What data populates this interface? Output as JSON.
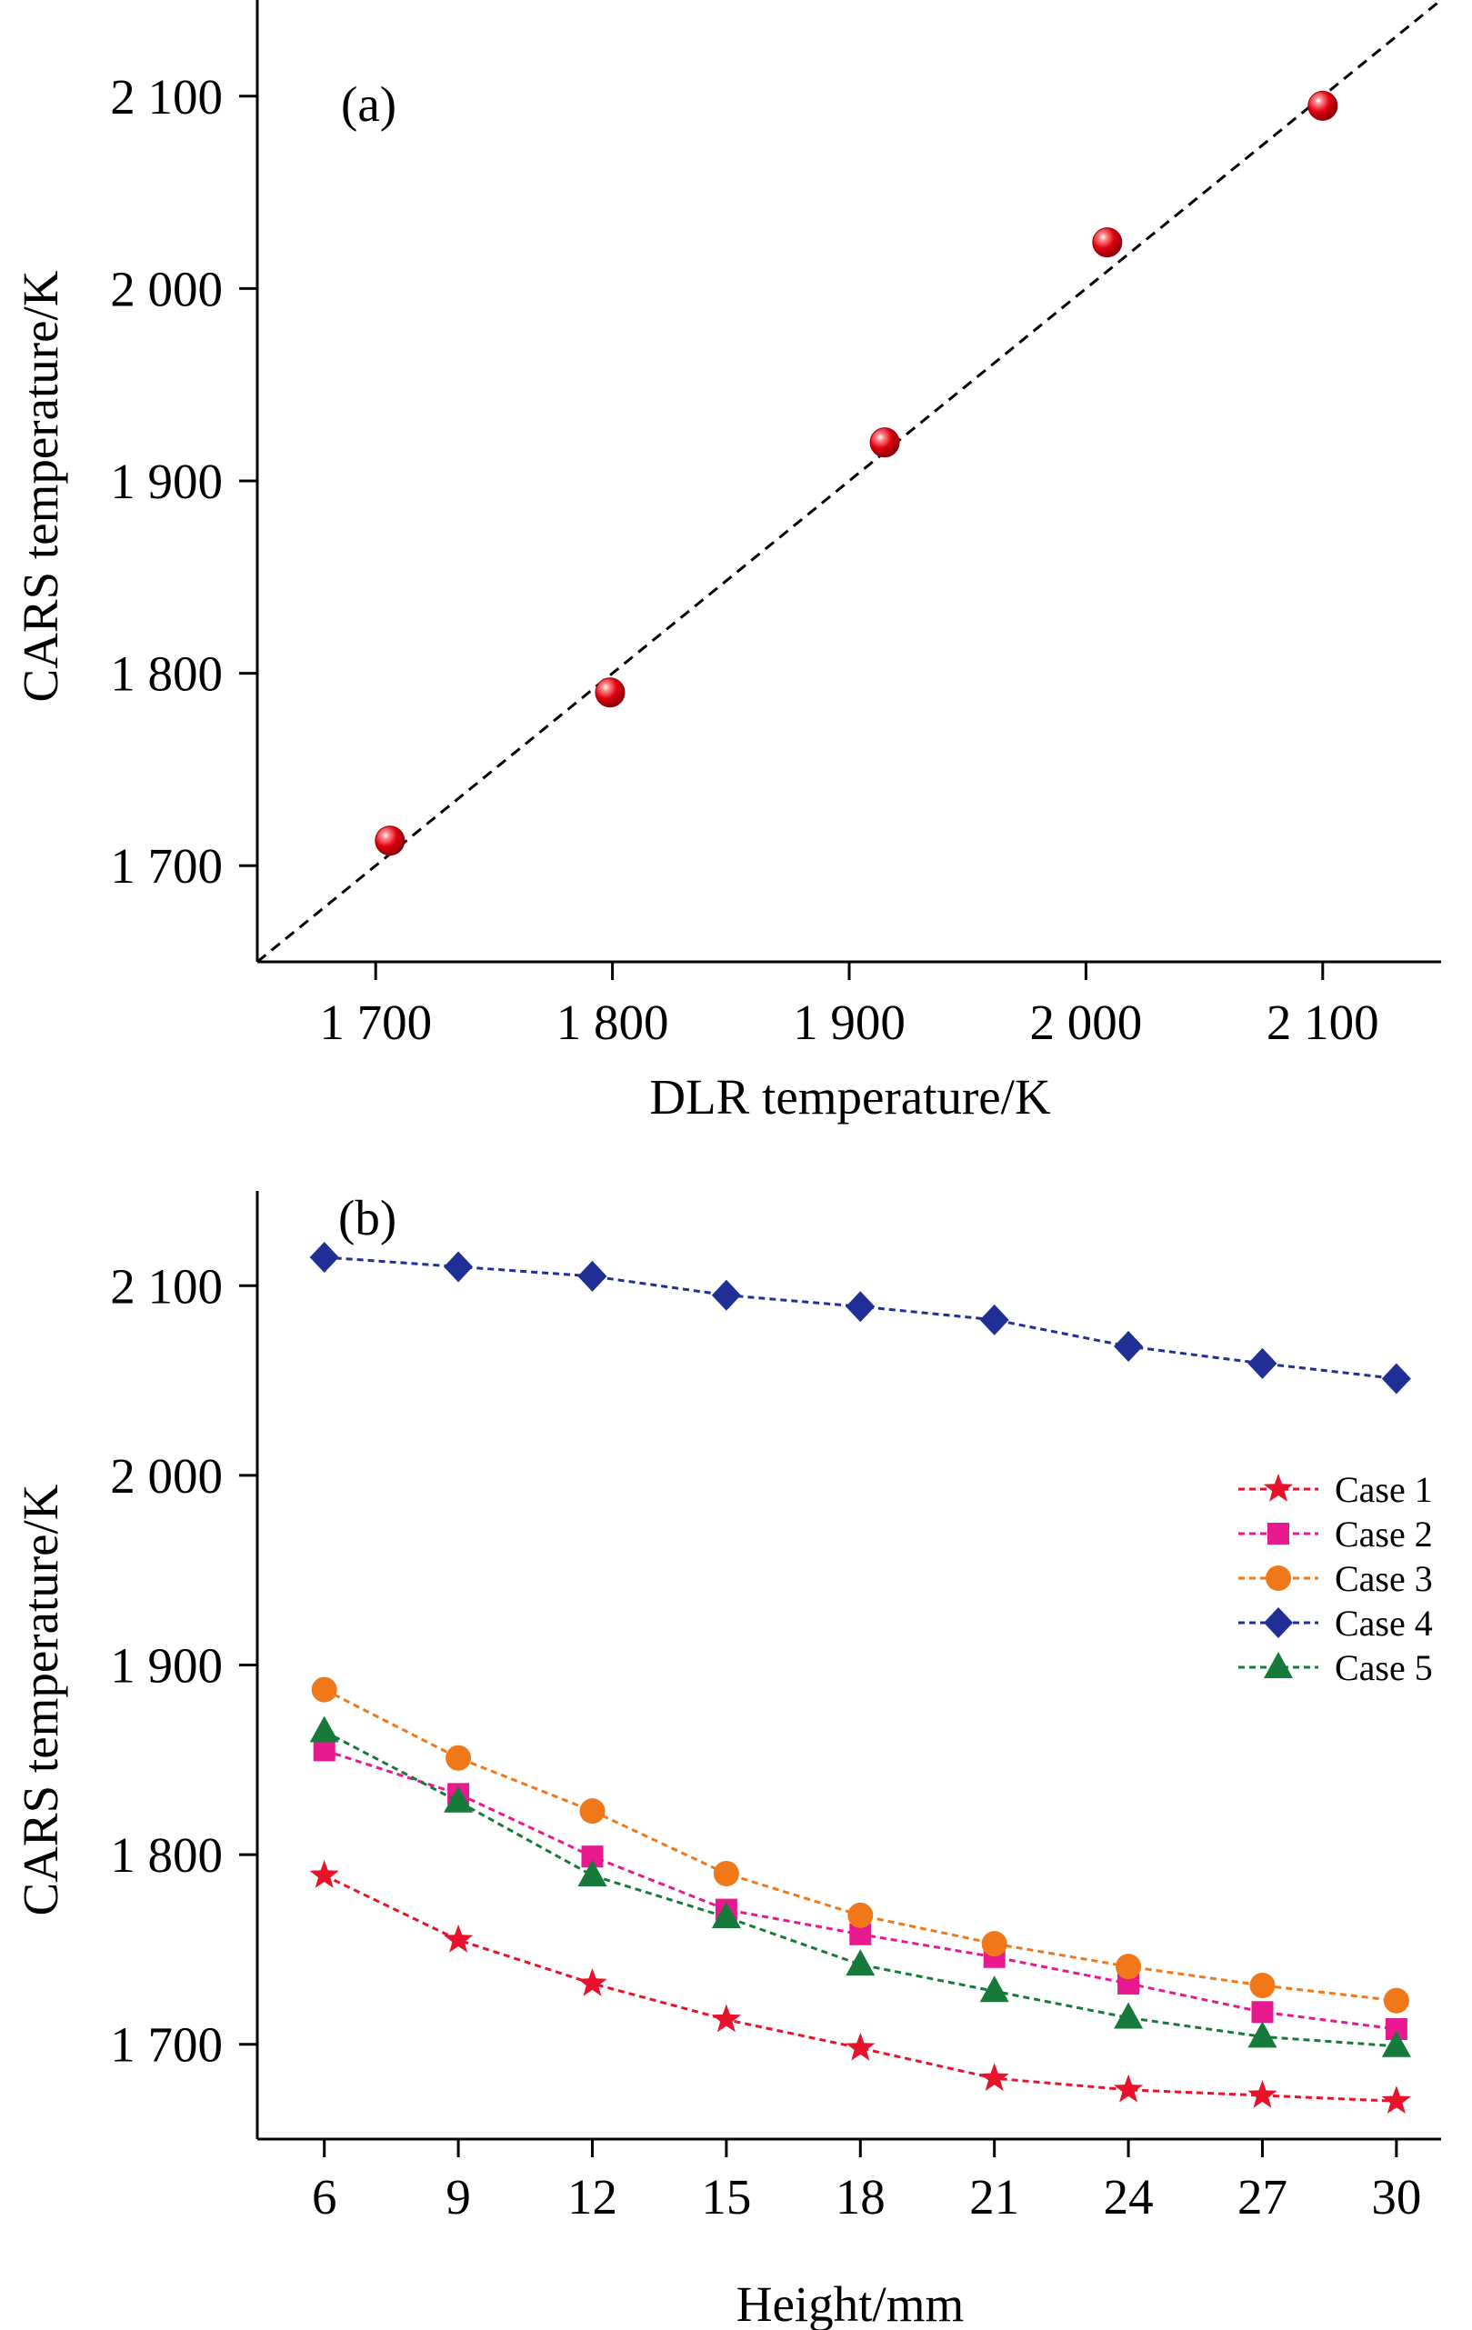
{
  "chart_data": [
    {
      "type": "scatter",
      "panel_label": "(a)",
      "xlabel": "DLR temperature/K",
      "ylabel": "CARS temperature/K",
      "xlim": [
        1650,
        2150
      ],
      "ylim": [
        1650,
        2150
      ],
      "x_ticks": [
        1700,
        1800,
        1900,
        2000,
        2100
      ],
      "x_tick_labels": [
        "1 700",
        "1 800",
        "1 900",
        "2 000",
        "2 100"
      ],
      "y_ticks": [
        1700,
        1800,
        1900,
        2000,
        2100
      ],
      "y_tick_labels": [
        "1 700",
        "1 800",
        "1 900",
        "2 000",
        "2 100"
      ],
      "points": [
        {
          "x": 1706,
          "y": 1713
        },
        {
          "x": 1799,
          "y": 1790
        },
        {
          "x": 1915,
          "y": 1920
        },
        {
          "x": 2009,
          "y": 2024
        },
        {
          "x": 2100,
          "y": 2095
        }
      ],
      "reference_line": {
        "style": "dashed",
        "from": [
          1650,
          1650
        ],
        "to": [
          2150,
          2150
        ]
      },
      "marker_color": "#e00010",
      "grid": false
    },
    {
      "type": "line",
      "panel_label": "(b)",
      "xlabel": "Height/mm",
      "ylabel": "CARS temperature/K",
      "xlim": [
        4.5,
        31
      ],
      "ylim": [
        1650,
        2150
      ],
      "x": [
        6,
        9,
        12,
        15,
        18,
        21,
        24,
        27,
        30
      ],
      "x_tick_labels": [
        "6",
        "9",
        "12",
        "15",
        "18",
        "21",
        "24",
        "27",
        "30"
      ],
      "y_ticks": [
        1700,
        1800,
        1900,
        2000,
        2100
      ],
      "y_tick_labels": [
        "1 700",
        "1 800",
        "1 900",
        "2 000",
        "2 100"
      ],
      "legend_position": "right",
      "grid": false,
      "series": [
        {
          "name": "Case 1",
          "marker": "star",
          "color": "#e8132b",
          "values": [
            1789,
            1755,
            1732,
            1713,
            1698,
            1682,
            1676,
            1673,
            1670
          ]
        },
        {
          "name": "Case 2",
          "marker": "square",
          "color": "#e8198f",
          "values": [
            1855,
            1832,
            1799,
            1771,
            1758,
            1746,
            1732,
            1717,
            1708
          ]
        },
        {
          "name": "Case 3",
          "marker": "circle",
          "color": "#f07818",
          "values": [
            1887,
            1851,
            1823,
            1790,
            1768,
            1753,
            1741,
            1731,
            1723
          ]
        },
        {
          "name": "Case 4",
          "marker": "diamond",
          "color": "#1f2f95",
          "values": [
            2115,
            2110,
            2105,
            2095,
            2089,
            2082,
            2068,
            2059,
            2051
          ]
        },
        {
          "name": "Case 5",
          "marker": "triangle",
          "color": "#157a3a",
          "values": [
            1865,
            1828,
            1789,
            1767,
            1742,
            1728,
            1714,
            1704,
            1699
          ]
        }
      ]
    }
  ]
}
